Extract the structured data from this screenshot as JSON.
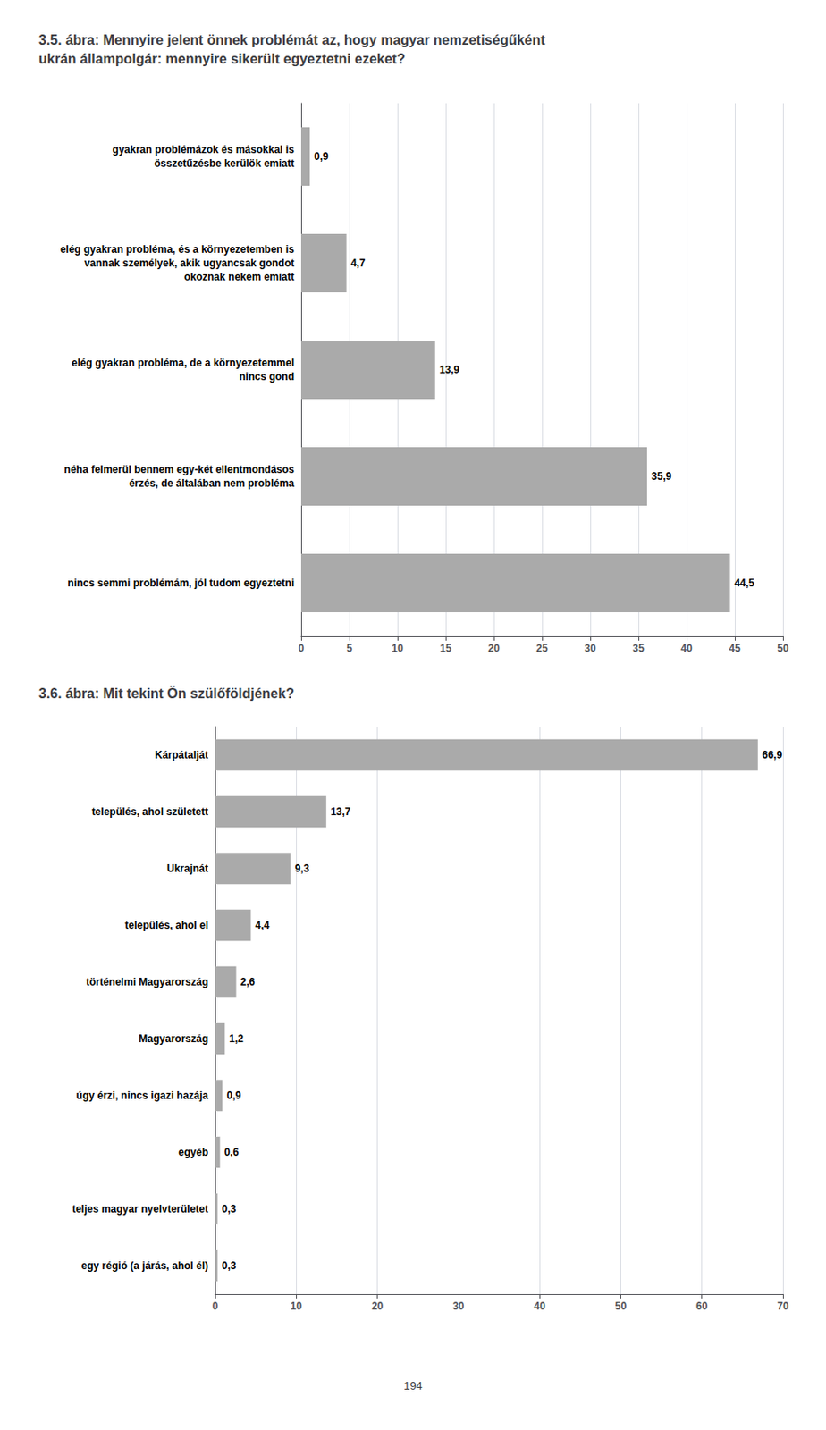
{
  "chart_data": [
    {
      "type": "bar",
      "orientation": "horizontal",
      "title": "3.5. ábra: Mennyire jelent önnek problémát az, hogy magyar nemzetiségűként\nukrán állampolgár: mennyire sikerült egyeztetni ezeket?",
      "categories": [
        "gyakran problémázok és másokkal is\nösszetűzésbe kerülök emiatt",
        "elég gyakran probléma, és a környezetemben is\nvannak személyek, akik ugyancsak gondot\nokoznak nekem emiatt",
        "elég gyakran probléma, de a környezetemmel\nnincs gond",
        "néha felmerül bennem egy-két ellentmondásos\nérzés, de általában nem probléma",
        "nincs semmi problémám, jól tudom egyeztetni"
      ],
      "values": [
        0.9,
        4.7,
        13.9,
        35.9,
        44.5
      ],
      "value_labels": [
        "0,9",
        "4,7",
        "13,9",
        "35,9",
        "44,5"
      ],
      "data_labels": true,
      "color": "#aaaaaa",
      "xlim": [
        0,
        50
      ],
      "xticks": [
        0,
        5,
        10,
        15,
        20,
        25,
        30,
        35,
        40,
        45,
        50
      ],
      "grid": true
    },
    {
      "type": "bar",
      "orientation": "horizontal",
      "title": "3.6. ábra: Mit tekint Ön szülőföldjének?",
      "categories": [
        "Kárpátalját",
        "település, ahol született",
        "Ukrajnát",
        "település, ahol el",
        "történelmi Magyarország",
        "Magyarország",
        "úgy érzi, nincs igazi hazája",
        "egyéb",
        "teljes magyar nyelvterületet",
        "egy régió (a járás, ahol él)"
      ],
      "values": [
        66.9,
        13.7,
        9.3,
        4.4,
        2.6,
        1.2,
        0.9,
        0.6,
        0.3,
        0.3
      ],
      "value_labels": [
        "66,9",
        "13,7",
        "9,3",
        "4,4",
        "2,6",
        "1,2",
        "0,9",
        "0,6",
        "0,3",
        "0,3"
      ],
      "data_labels": true,
      "color": "#aaaaaa",
      "xlim": [
        0,
        70
      ],
      "xticks": [
        0,
        10,
        20,
        30,
        40,
        50,
        60,
        70
      ],
      "grid": true
    }
  ],
  "page_number": "194"
}
